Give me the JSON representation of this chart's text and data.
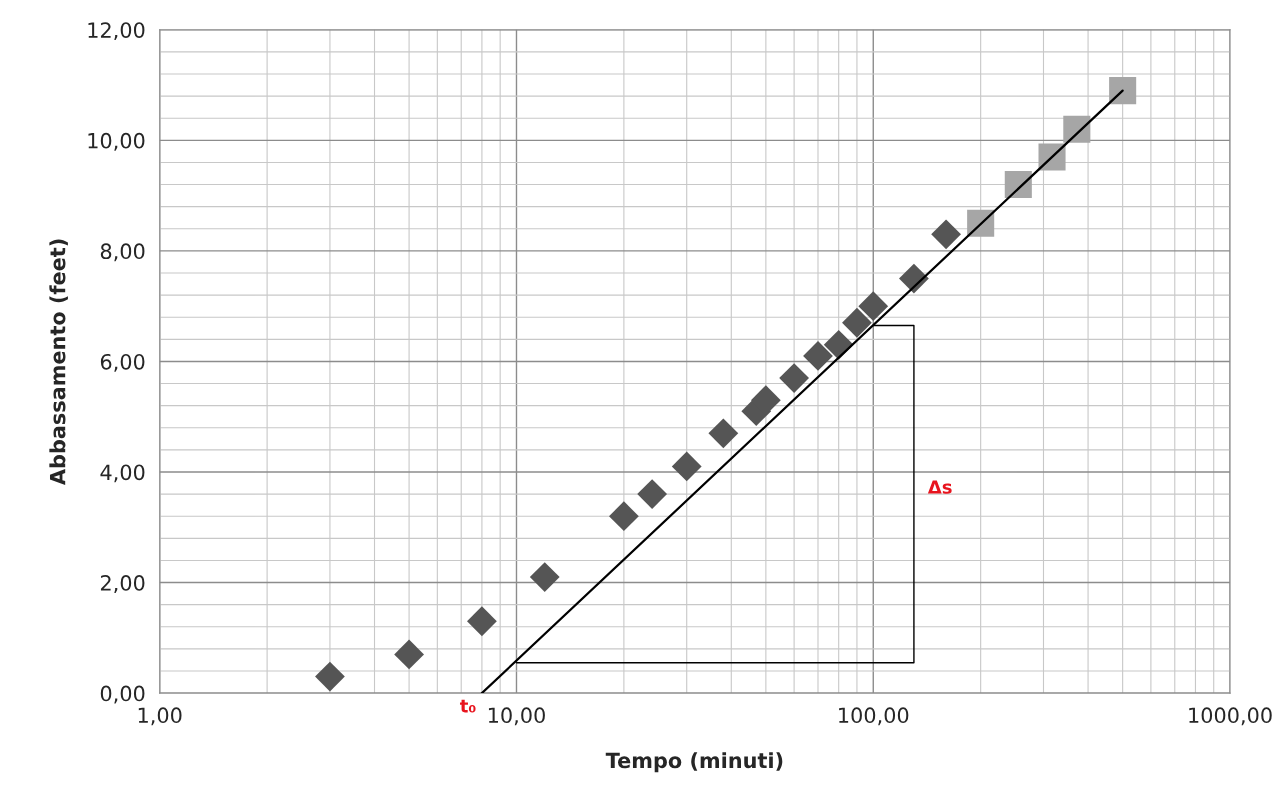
{
  "chart_data": {
    "type": "scatter",
    "xlabel": "Tempo (minuti)",
    "ylabel": "Abbassamento (feet)",
    "log": "x",
    "xlim": [
      1,
      1000
    ],
    "xticks": [
      {
        "value": 1,
        "label": "1,00"
      },
      {
        "value": 10,
        "label": "10,00"
      },
      {
        "value": 100,
        "label": "100,00"
      },
      {
        "value": 1000,
        "label": "1000,00"
      }
    ],
    "ylim": [
      0,
      12
    ],
    "yticks": [
      {
        "value": 0,
        "label": "0,00"
      },
      {
        "value": 2,
        "label": "2,00"
      },
      {
        "value": 4,
        "label": "4,00"
      },
      {
        "value": 6,
        "label": "6,00"
      },
      {
        "value": 8,
        "label": "8,00"
      },
      {
        "value": 10,
        "label": "10,00"
      },
      {
        "value": 12,
        "label": "12,00"
      }
    ],
    "grid": true,
    "legend": false,
    "series": [
      {
        "marker": "diamond",
        "color": "#555555",
        "x": [
          3,
          5,
          8,
          12,
          20,
          24,
          30,
          38,
          47,
          50,
          60,
          70,
          80,
          90,
          100,
          130,
          160
        ],
        "values": [
          0.3,
          0.7,
          1.3,
          2.1,
          3.2,
          3.6,
          4.1,
          4.7,
          5.1,
          5.3,
          5.7,
          6.1,
          6.3,
          6.7,
          7.0,
          7.5,
          8.3
        ]
      },
      {
        "marker": "square",
        "color": "#a6a6a6",
        "x": [
          200,
          255,
          317,
          372,
          500
        ],
        "values": [
          8.5,
          9.2,
          9.7,
          10.2,
          10.9
        ]
      },
      {
        "type": "line",
        "marker": "none",
        "line_style": "solid",
        "color": "#000000",
        "x": [
          8,
          500
        ],
        "values": [
          0,
          10.9
        ]
      },
      {
        "type": "line",
        "marker": "none",
        "line_style": "solid",
        "color": "#000000",
        "x": [
          10,
          130,
          130,
          100
        ],
        "values": [
          0.55,
          0.55,
          6.65,
          6.65
        ]
      }
    ],
    "annotations": [
      {
        "text": "t₀",
        "x": 8,
        "y": 0
      },
      {
        "text": "Δs",
        "x": 130,
        "y": 3.7
      }
    ]
  }
}
